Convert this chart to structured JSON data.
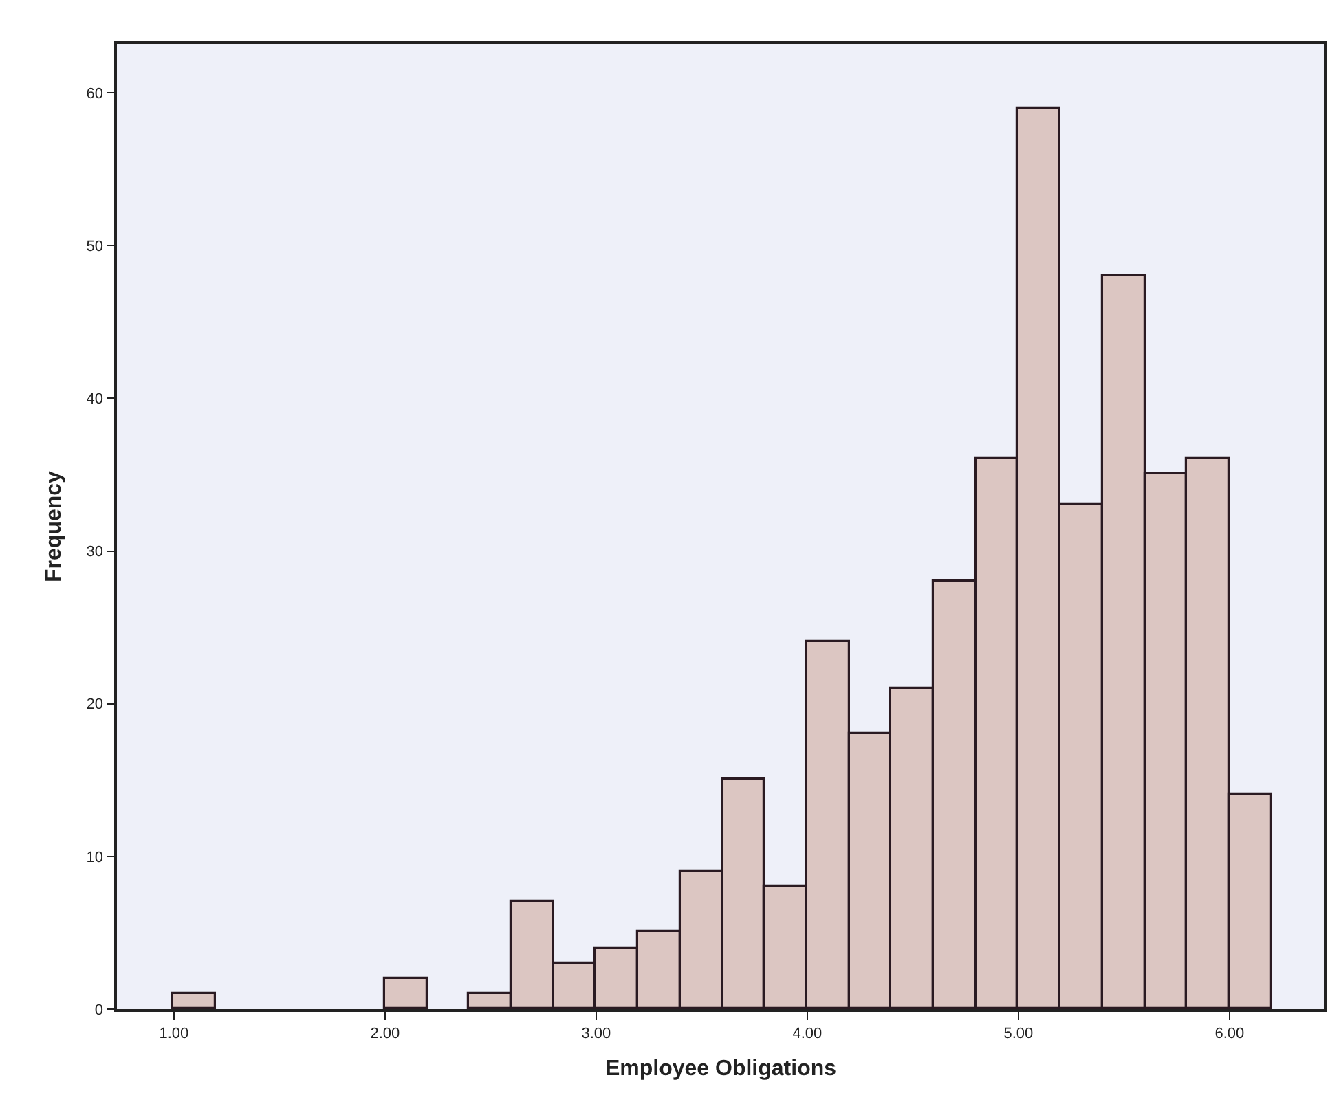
{
  "chart_data": {
    "type": "histogram",
    "xlabel": "Employee Obligations",
    "ylabel": "Frequency",
    "bins": [
      1.0,
      1.2,
      1.4,
      1.6,
      1.8,
      2.0,
      2.2,
      2.4,
      2.6,
      2.8,
      3.0,
      3.2,
      3.4,
      3.6,
      3.8,
      4.0,
      4.2,
      4.4,
      4.6,
      4.8,
      5.0,
      5.2,
      5.4,
      5.6,
      5.8,
      6.0,
      6.2
    ],
    "values": [
      1,
      0,
      0,
      0,
      0,
      2,
      0,
      1,
      7,
      3,
      4,
      5,
      9,
      15,
      8,
      24,
      18,
      21,
      28,
      36,
      59,
      33,
      48,
      35,
      36,
      14
    ],
    "color": "#dcc6c2",
    "xlim": [
      0.73,
      6.45
    ],
    "ylim": [
      0,
      63.2
    ],
    "xticks": [
      {
        "value": 1,
        "label": "1.00"
      },
      {
        "value": 2,
        "label": "2.00"
      },
      {
        "value": 3,
        "label": "3.00"
      },
      {
        "value": 4,
        "label": "4.00"
      },
      {
        "value": 5,
        "label": "5.00"
      },
      {
        "value": 6,
        "label": "6.00"
      }
    ],
    "yticks": [
      0,
      10,
      20,
      30,
      40,
      50,
      60
    ],
    "grid": false
  }
}
